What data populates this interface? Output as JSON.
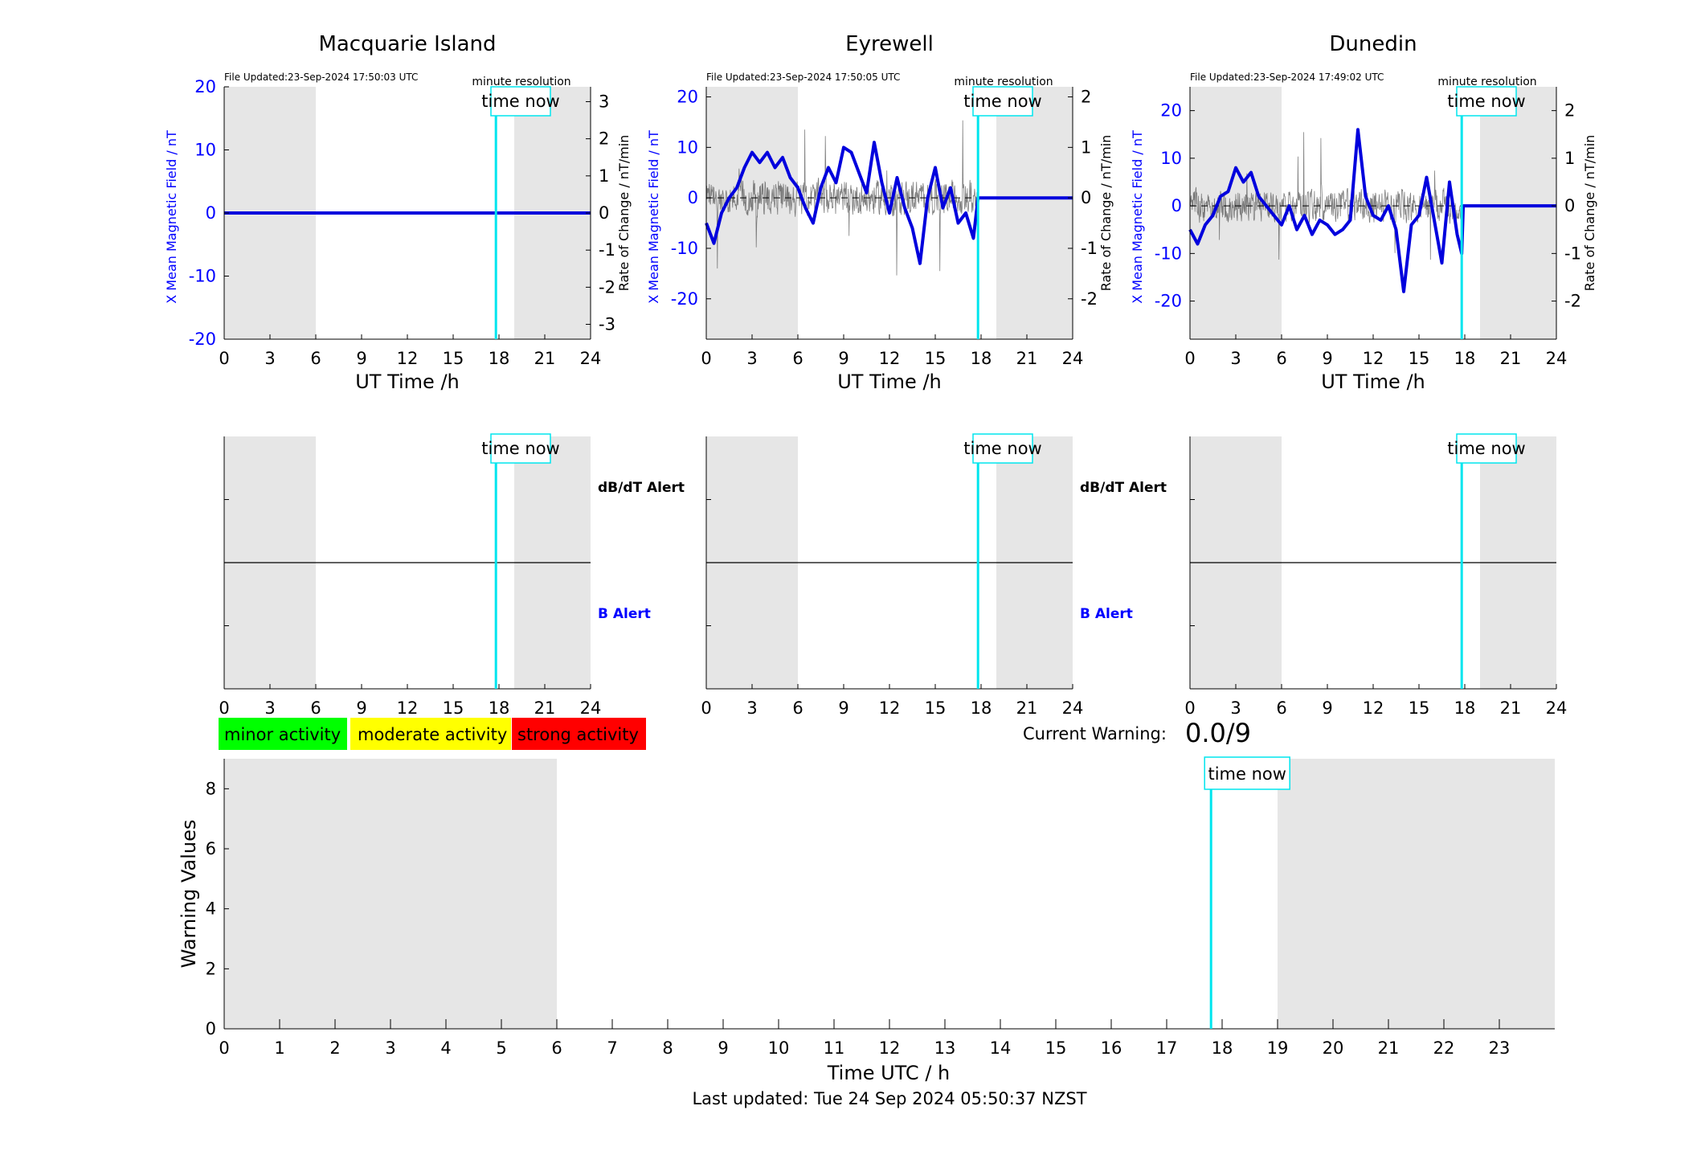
{
  "stations": [
    {
      "name": "Macquarie Island",
      "file_updated": "File Updated:23-Sep-2024 17:50:03 UTC",
      "resolution": "minute resolution",
      "left_ylabel": "X Mean Magnetic Field / nT",
      "right_ylabel": "Rate of Change / nT/min",
      "left_yticks": [
        "20",
        "10",
        "0",
        "-10",
        "-20"
      ],
      "right_yticks": [
        "3",
        "2",
        "1",
        "0",
        "-1",
        "-2",
        "-3"
      ],
      "xlabel": "UT Time /h",
      "xticks": [
        "0",
        "3",
        "6",
        "9",
        "12",
        "15",
        "18",
        "21",
        "24"
      ],
      "alert_xticks": [
        "0",
        "3",
        "6",
        "9",
        "12",
        "15",
        "18",
        "21",
        "24"
      ],
      "time_now": "time now",
      "alert_time_now": "time now",
      "db_alert": "dB/dT Alert",
      "b_alert": "B Alert"
    },
    {
      "name": "Eyrewell",
      "file_updated": "File Updated:23-Sep-2024 17:50:05 UTC",
      "resolution": "minute resolution",
      "left_ylabel": "X Mean Magnetic Field / nT",
      "right_ylabel": "Rate of Change / nT/min",
      "left_yticks": [
        "20",
        "10",
        "0",
        "-10",
        "-20"
      ],
      "right_yticks": [
        "2",
        "1",
        "0",
        "-1",
        "-2"
      ],
      "xlabel": "UT Time /h",
      "xticks": [
        "0",
        "3",
        "6",
        "9",
        "12",
        "15",
        "18",
        "21",
        "24"
      ],
      "alert_xticks": [
        "0",
        "3",
        "6",
        "9",
        "12",
        "15",
        "18",
        "21",
        "24"
      ],
      "time_now": "time now",
      "alert_time_now": "time now",
      "db_alert": "dB/dT Alert",
      "b_alert": "B Alert"
    },
    {
      "name": "Dunedin",
      "file_updated": "File Updated:23-Sep-2024 17:49:02 UTC",
      "resolution": "minute resolution",
      "left_ylabel": "X Mean Magnetic Field / nT",
      "right_ylabel": "Rate of Change / nT/min",
      "left_yticks": [
        "20",
        "10",
        "0",
        "-10",
        "-20"
      ],
      "right_yticks": [
        "2",
        "1",
        "0",
        "-1",
        "-2"
      ],
      "xlabel": "UT Time /h",
      "xticks": [
        "0",
        "3",
        "6",
        "9",
        "12",
        "15",
        "18",
        "21",
        "24"
      ],
      "alert_xticks": [
        "0",
        "3",
        "6",
        "9",
        "12",
        "15",
        "18",
        "21",
        "24"
      ],
      "time_now": "time now",
      "alert_time_now": "time now",
      "db_alert": "",
      "b_alert": ""
    }
  ],
  "legend": [
    {
      "label": "minor activity",
      "color": "#00ff00"
    },
    {
      "label": "moderate activity",
      "color": "#ffff00"
    },
    {
      "label": "strong activity",
      "color": "#ff0000"
    }
  ],
  "current_warning": {
    "label": "Current Warning:",
    "value": "0.0/9"
  },
  "warning_chart": {
    "ylabel": "Warning Values",
    "xlabel": "Time UTC / h",
    "yticks": [
      "8",
      "6",
      "4",
      "2",
      "0"
    ],
    "xticks": [
      "0",
      "1",
      "2",
      "3",
      "4",
      "5",
      "6",
      "7",
      "8",
      "9",
      "10",
      "11",
      "12",
      "13",
      "14",
      "15",
      "16",
      "17",
      "18",
      "19",
      "20",
      "21",
      "22",
      "23"
    ],
    "time_now": "time now"
  },
  "footer": "Last updated: Tue 24 Sep 2024 05:50:37 NZST",
  "colors": {
    "field": "#0000dd",
    "time_now": "#00e5ee",
    "shade": "#e6e6e6",
    "rate": "#555555"
  },
  "chart_data": [
    {
      "type": "line",
      "title": "Macquarie Island",
      "xlabel": "UT Time /h",
      "ylabel": "X Mean Magnetic Field / nT",
      "y2label": "Rate of Change / nT/min",
      "xlim": [
        0,
        24
      ],
      "ylim": [
        -20,
        20
      ],
      "y2lim": [
        -3.4,
        3.4
      ],
      "night_shading_h": [
        [
          0,
          6
        ],
        [
          19,
          24
        ]
      ],
      "time_now_h": 17.8,
      "series": [
        {
          "x": [
            0,
            24
          ],
          "values": [
            0,
            0
          ]
        }
      ]
    },
    {
      "type": "line",
      "title": "Eyrewell",
      "xlabel": "UT Time /h",
      "ylabel": "X Mean Magnetic Field / nT",
      "y2label": "Rate of Change / nT/min",
      "xlim": [
        0,
        24
      ],
      "ylim": [
        -28,
        22
      ],
      "y2lim": [
        -2.8,
        2.2
      ],
      "night_shading_h": [
        [
          0,
          6
        ],
        [
          19,
          24
        ]
      ],
      "time_now_h": 17.8,
      "series": [
        {
          "x": [
            0,
            0.5,
            1,
            1.5,
            2,
            2.5,
            3,
            3.5,
            4,
            4.5,
            5,
            5.5,
            6,
            6.5,
            7,
            7.5,
            8,
            8.5,
            9,
            9.5,
            10,
            10.5,
            11,
            11.5,
            12,
            12.5,
            13,
            13.5,
            14,
            14.5,
            15,
            15.5,
            16,
            16.5,
            17,
            17.5,
            17.8,
            24
          ],
          "values": [
            -5,
            -9,
            -3,
            0,
            2,
            6,
            9,
            7,
            9,
            6,
            8,
            4,
            2,
            -2,
            -5,
            2,
            6,
            3,
            10,
            9,
            5,
            1,
            11,
            3,
            -3,
            4,
            -2,
            -6,
            -13,
            0,
            6,
            -2,
            2,
            -5,
            -3,
            -8,
            0,
            0
          ]
        }
      ]
    },
    {
      "type": "line",
      "title": "Dunedin",
      "xlabel": "UT Time /h",
      "ylabel": "X Mean Magnetic Field / nT",
      "y2label": "Rate of Change / nT/min",
      "xlim": [
        0,
        24
      ],
      "ylim": [
        -28,
        25
      ],
      "y2lim": [
        -2.8,
        2.5
      ],
      "night_shading_h": [
        [
          0,
          6
        ],
        [
          19,
          24
        ]
      ],
      "time_now_h": 17.8,
      "series": [
        {
          "x": [
            0,
            0.5,
            1,
            1.5,
            2,
            2.5,
            3,
            3.5,
            4,
            4.5,
            5,
            5.5,
            6,
            6.5,
            7,
            7.5,
            8,
            8.5,
            9,
            9.5,
            10,
            10.5,
            11,
            11.5,
            12,
            12.5,
            13,
            13.5,
            14,
            14.5,
            15,
            15.5,
            16,
            16.5,
            17,
            17.5,
            17.8,
            17.9,
            24
          ],
          "values": [
            -5,
            -8,
            -4,
            -2,
            2,
            3,
            8,
            5,
            7,
            2,
            0,
            -2,
            -4,
            0,
            -5,
            -2,
            -6,
            -3,
            -4,
            -6,
            -5,
            -3,
            16,
            2,
            -2,
            -3,
            0,
            -5,
            -18,
            -4,
            -2,
            6,
            -3,
            -12,
            5,
            -6,
            -10,
            0,
            0
          ]
        }
      ]
    },
    {
      "type": "bar",
      "xlabel": "Time UTC / h",
      "ylabel": "Warning Values",
      "xlim": [
        0,
        24
      ],
      "ylim": [
        0,
        9
      ],
      "night_shading_h": [
        [
          0,
          6
        ],
        [
          19,
          24
        ]
      ],
      "time_now_h": 17.8,
      "categories": [],
      "values": []
    }
  ]
}
